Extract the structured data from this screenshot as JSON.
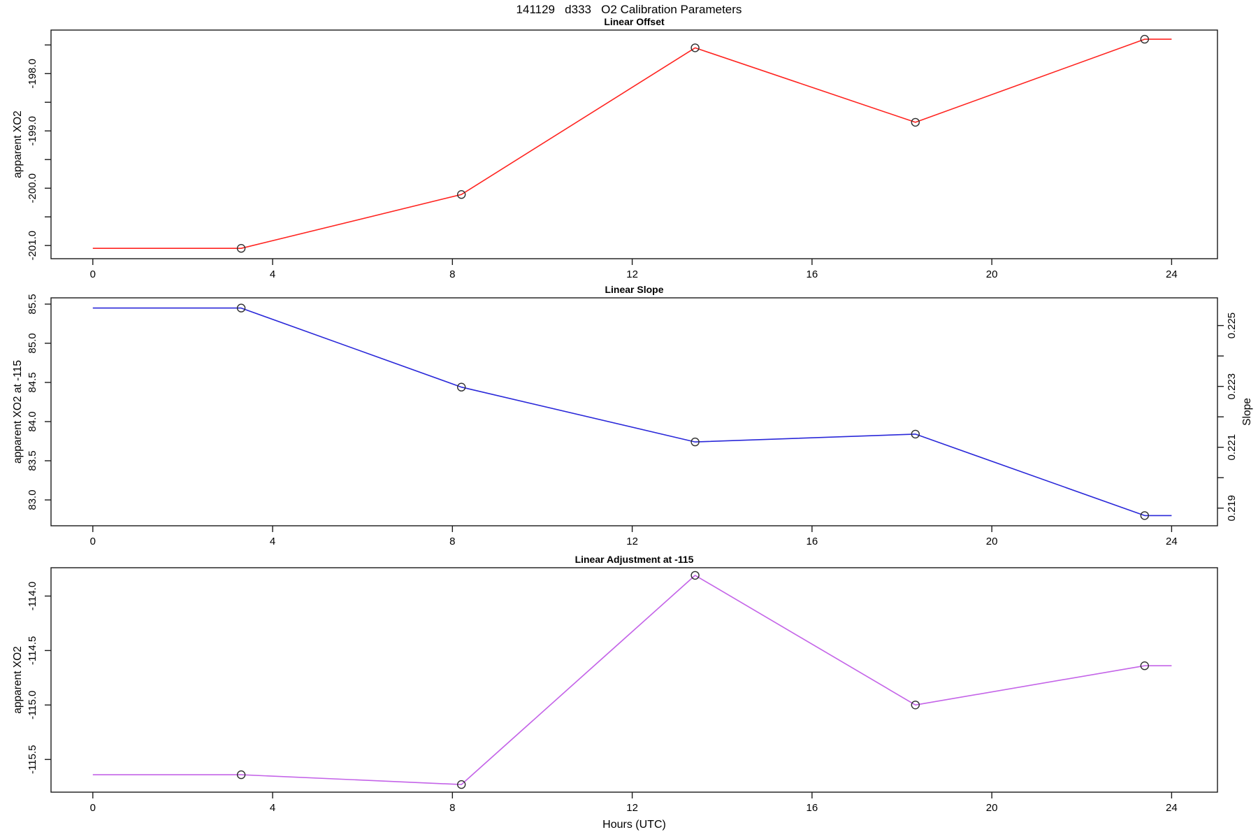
{
  "main_title": "141129   d333   O2 Calibration Parameters",
  "x_axis": {
    "label": "Hours (UTC)",
    "ticks": [
      0,
      4,
      8,
      12,
      16,
      20,
      24
    ],
    "lim": [
      -0.93,
      25.02
    ]
  },
  "style": {
    "frame_color": "#1a1a1a",
    "point_ring_color": "#2e2e2e",
    "offset_line_color": "#ff2420",
    "slope_line_color": "#2a28d9",
    "adjustment_line_color": "#c464e8"
  },
  "chart_data": [
    {
      "id": "offset",
      "type": "line",
      "title": "Linear Offset",
      "ylabel": "apparent XO2",
      "color": "#ff2420",
      "ylim": [
        -201.23,
        -197.24
      ],
      "yticks": [
        {
          "v": -201.0,
          "label": "-201.0"
        },
        {
          "v": -200.5,
          "label": ""
        },
        {
          "v": -200.0,
          "label": "-200.0"
        },
        {
          "v": -199.5,
          "label": ""
        },
        {
          "v": -199.0,
          "label": "-199.0"
        },
        {
          "v": -198.5,
          "label": ""
        },
        {
          "v": -198.0,
          "label": "-198.0"
        },
        {
          "v": -197.5,
          "label": ""
        }
      ],
      "points_x": [
        3.3,
        8.2,
        13.4,
        18.3,
        23.4
      ],
      "points_y": [
        -201.05,
        -200.11,
        -197.55,
        -198.85,
        -197.4
      ],
      "line_x": [
        0,
        3.3,
        8.2,
        13.4,
        18.3,
        23.4,
        24
      ],
      "line_y": [
        -201.05,
        -201.05,
        -200.11,
        -197.55,
        -198.85,
        -197.4,
        -197.4
      ]
    },
    {
      "id": "slope",
      "type": "line",
      "title": "Linear Slope",
      "ylabel": "apparent XO2 at -115",
      "ylabel_right": "Slope",
      "color": "#2a28d9",
      "ylim": [
        82.67,
        85.58
      ],
      "yticks": [
        {
          "v": 83.0,
          "label": "83.0"
        },
        {
          "v": 83.5,
          "label": "83.5"
        },
        {
          "v": 84.0,
          "label": "84.0"
        },
        {
          "v": 84.5,
          "label": "84.5"
        },
        {
          "v": 85.0,
          "label": "85.0"
        },
        {
          "v": 85.5,
          "label": "85.5"
        }
      ],
      "right_ylim": [
        0.21842,
        0.22591
      ],
      "right_yticks": [
        {
          "v": 0.219,
          "label": "0.219"
        },
        {
          "v": 0.22,
          "label": ""
        },
        {
          "v": 0.221,
          "label": "0.221"
        },
        {
          "v": 0.222,
          "label": ""
        },
        {
          "v": 0.223,
          "label": "0.223"
        },
        {
          "v": 0.224,
          "label": ""
        },
        {
          "v": 0.225,
          "label": "0.225"
        }
      ],
      "points_x": [
        3.3,
        8.2,
        13.4,
        18.3,
        23.4
      ],
      "points_y": [
        85.45,
        84.44,
        83.74,
        83.84,
        82.8
      ],
      "line_x": [
        0,
        3.3,
        8.2,
        13.4,
        18.3,
        23.4,
        24
      ],
      "line_y": [
        85.45,
        85.45,
        84.44,
        83.74,
        83.84,
        82.8,
        82.8
      ]
    },
    {
      "id": "adjustment",
      "type": "line",
      "title": "Linear Adjustment at -115",
      "ylabel": "apparent XO2",
      "color": "#c464e8",
      "ylim": [
        -115.8,
        -113.74
      ],
      "yticks": [
        {
          "v": -115.5,
          "label": "-115.5"
        },
        {
          "v": -115.0,
          "label": "-115.0"
        },
        {
          "v": -114.5,
          "label": "-114.5"
        },
        {
          "v": -114.0,
          "label": "-114.0"
        }
      ],
      "points_x": [
        3.3,
        8.2,
        13.4,
        18.3,
        23.4
      ],
      "points_y": [
        -115.64,
        -115.73,
        -113.81,
        -115.0,
        -114.64
      ],
      "line_x": [
        0,
        3.3,
        8.2,
        13.4,
        18.3,
        23.4,
        24
      ],
      "line_y": [
        -115.64,
        -115.64,
        -115.73,
        -113.81,
        -115.0,
        -114.64,
        -114.64
      ]
    }
  ]
}
